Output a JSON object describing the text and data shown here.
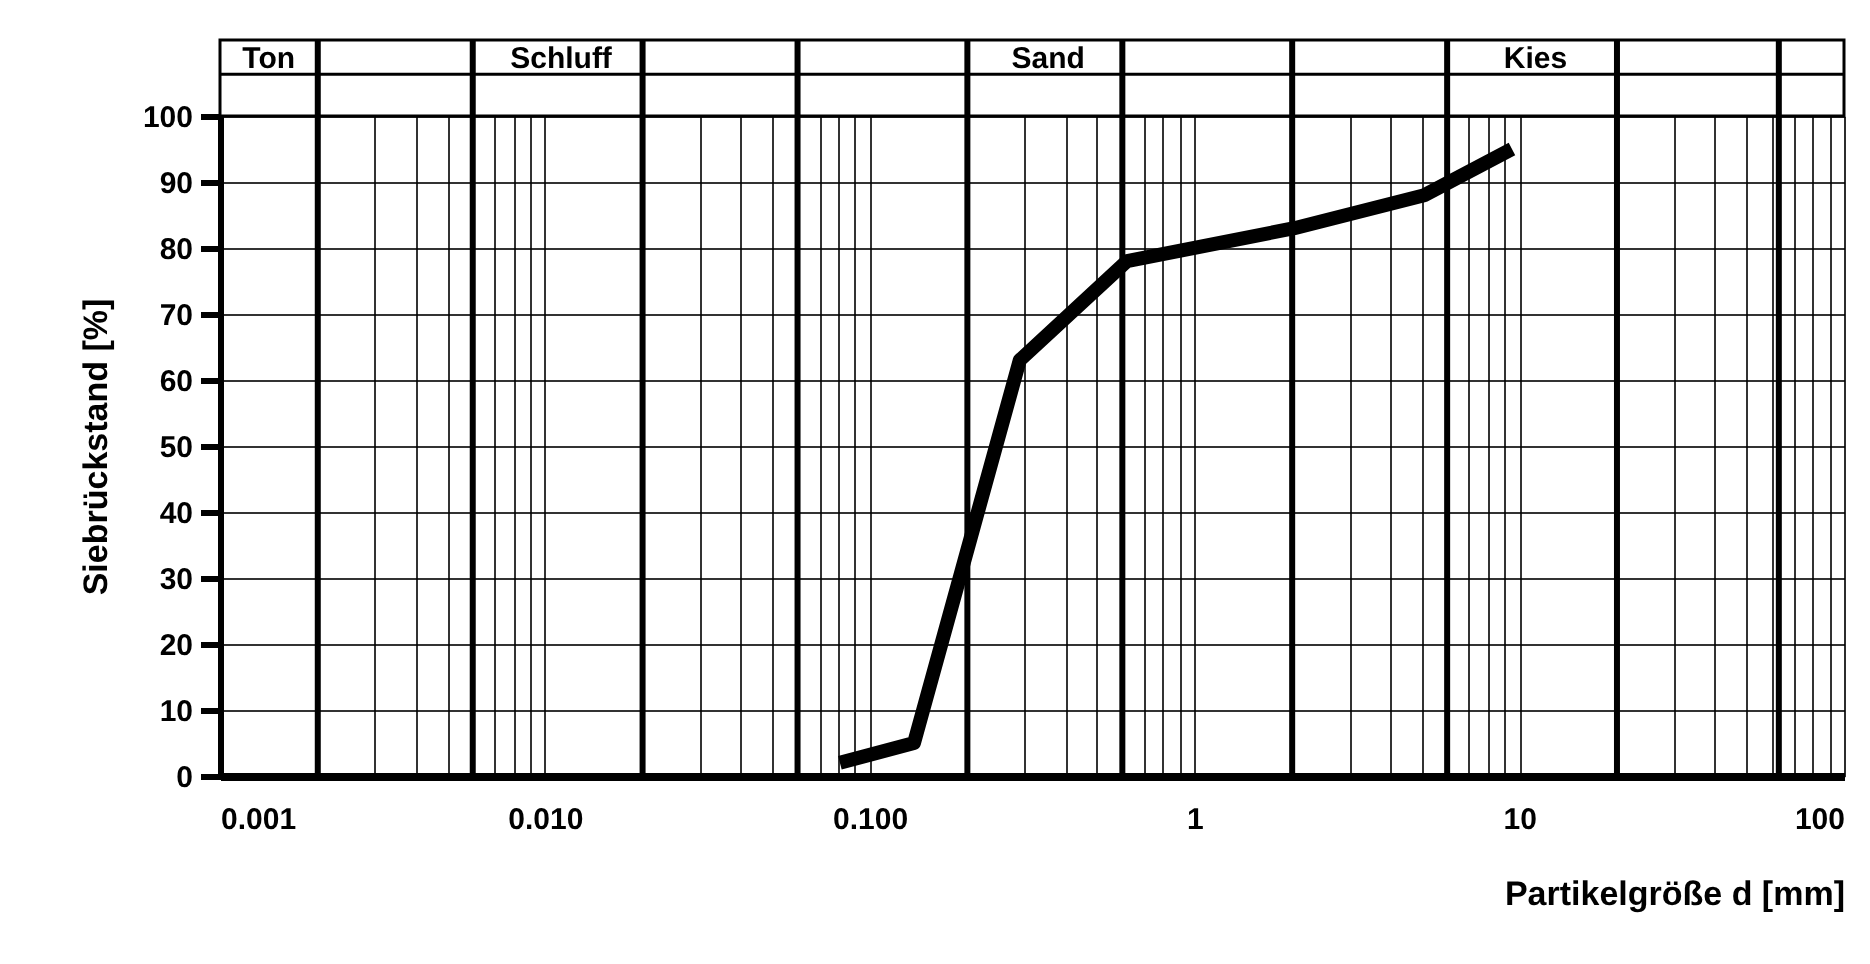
{
  "chart_data": {
    "type": "line",
    "xlabel": "Partikelgröße d [mm]",
    "ylabel": "Siebrückstand [%]",
    "log": "x",
    "series": [
      {
        "color": "#000000",
        "x": [
          0.081,
          0.137,
          0.29,
          0.62,
          2.03,
          5.1,
          9.5
        ],
        "values": [
          2,
          5,
          63,
          78,
          83,
          88,
          95
        ]
      }
    ],
    "xlim": [
      0.001,
      100
    ],
    "xticks": [
      {
        "value": 0.001,
        "label": "0.001"
      },
      {
        "value": 0.003,
        "label": null
      },
      {
        "value": 0.004,
        "label": null
      },
      {
        "value": 0.005,
        "label": null
      },
      {
        "value": 0.007,
        "label": null
      },
      {
        "value": 0.008,
        "label": null
      },
      {
        "value": 0.009,
        "label": null
      },
      {
        "value": 0.01,
        "label": "0.010"
      },
      {
        "value": 0.03,
        "label": null
      },
      {
        "value": 0.04,
        "label": null
      },
      {
        "value": 0.05,
        "label": null
      },
      {
        "value": 0.07,
        "label": null
      },
      {
        "value": 0.08,
        "label": null
      },
      {
        "value": 0.09,
        "label": null
      },
      {
        "value": 0.1,
        "label": "0.100"
      },
      {
        "value": 0.3,
        "label": null
      },
      {
        "value": 0.4,
        "label": null
      },
      {
        "value": 0.5,
        "label": null
      },
      {
        "value": 0.7,
        "label": null
      },
      {
        "value": 0.8,
        "label": null
      },
      {
        "value": 0.9,
        "label": null
      },
      1,
      {
        "value": 3,
        "label": null
      },
      {
        "value": 4,
        "label": null
      },
      {
        "value": 5,
        "label": null
      },
      {
        "value": 7,
        "label": null
      },
      {
        "value": 8,
        "label": null
      },
      {
        "value": 9,
        "label": null
      },
      10,
      {
        "value": 30,
        "label": null
      },
      {
        "value": 40,
        "label": null
      },
      {
        "value": 50,
        "label": null
      },
      {
        "value": 60,
        "label": null
      },
      {
        "value": 70,
        "label": null
      },
      {
        "value": 80,
        "label": null
      },
      {
        "value": 90,
        "label": null
      },
      100
    ],
    "ylim": [
      0,
      100
    ],
    "yticks": [
      0,
      10,
      20,
      30,
      40,
      50,
      60,
      70,
      80,
      90,
      100
    ],
    "grid": true,
    "ref_lines": [
      {
        "axis": "x",
        "value": 0.002
      },
      {
        "axis": "x",
        "value": 0.006
      },
      {
        "axis": "x",
        "value": 0.02
      },
      {
        "axis": "x",
        "value": 0.06
      },
      {
        "axis": "x",
        "value": 0.2
      },
      {
        "axis": "x",
        "value": 0.6
      },
      {
        "axis": "x",
        "value": 2
      },
      {
        "axis": "x",
        "value": 6
      },
      {
        "axis": "x",
        "value": 20
      },
      {
        "axis": "x",
        "value": 63
      }
    ],
    "annotations": [
      "Ton",
      "Schluff",
      "Sand",
      "Kies"
    ]
  }
}
